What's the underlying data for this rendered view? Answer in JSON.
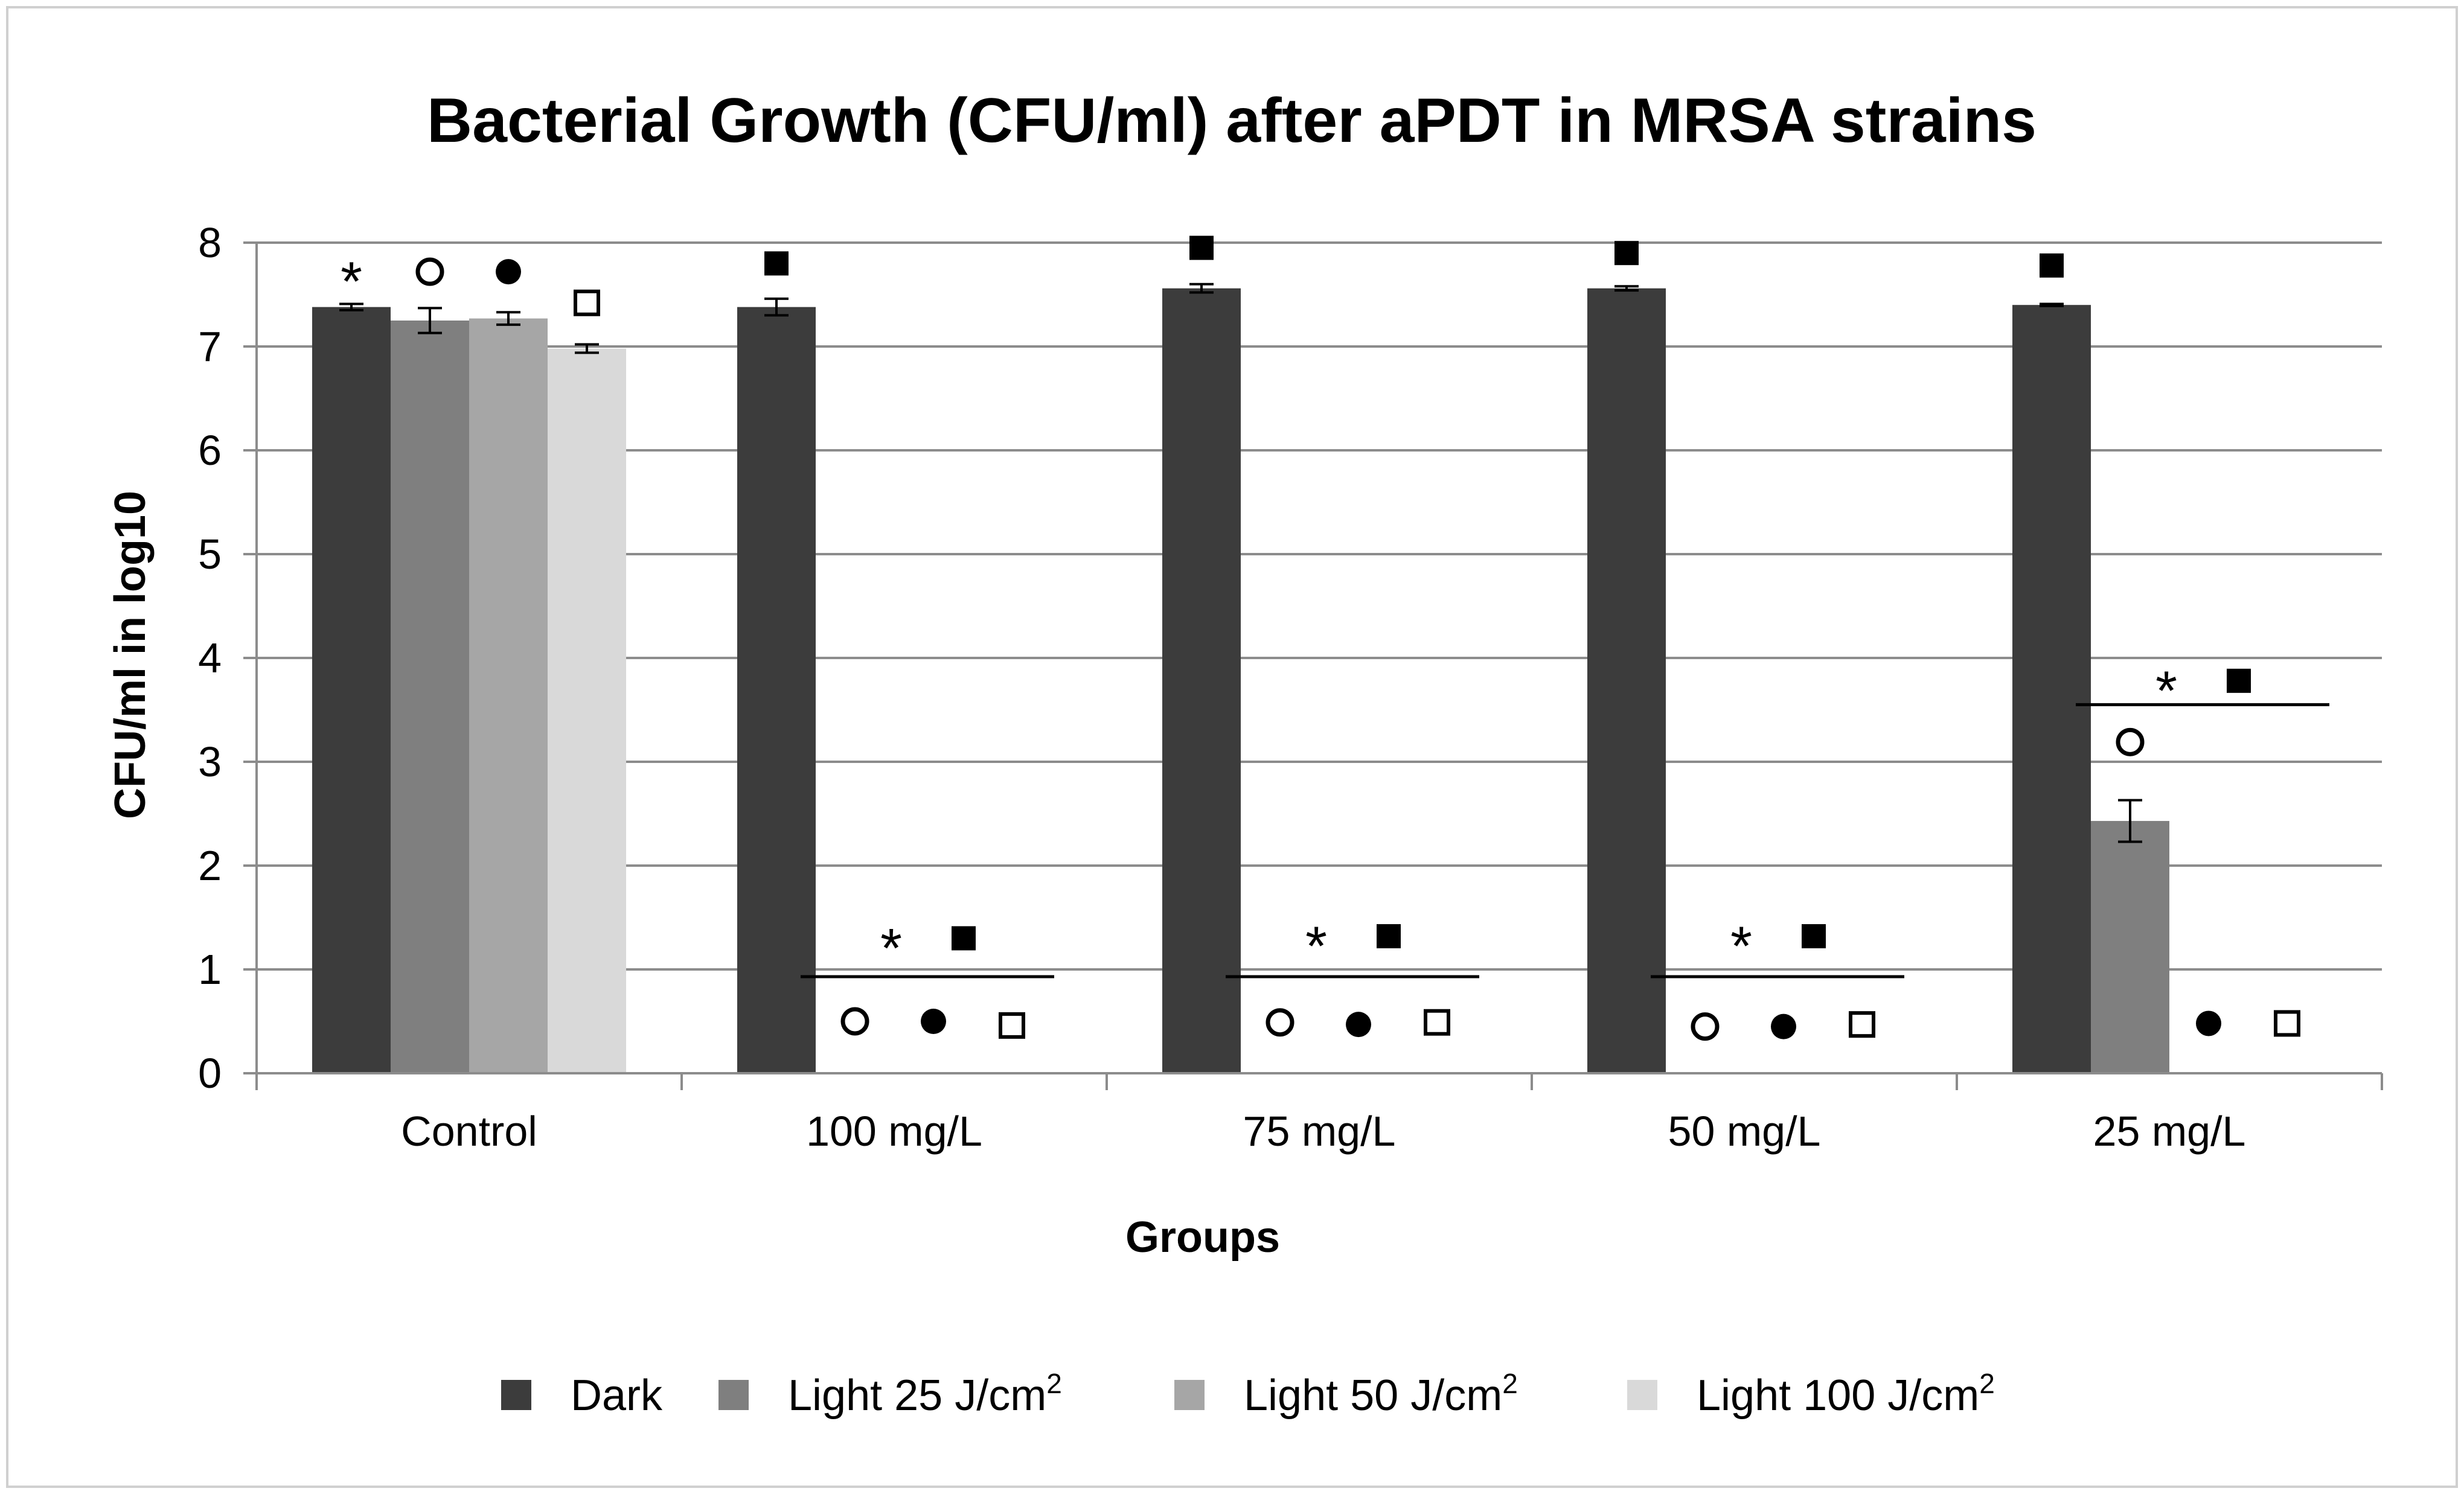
{
  "chart_data": {
    "type": "bar",
    "title": "Bacterial Growth (CFU/ml) after aPDT in MRSA strains",
    "xlabel": "Groups",
    "ylabel": "CFU/ml in log10",
    "ylim": [
      0,
      8
    ],
    "yticks": [
      "0",
      "1",
      "2",
      "3",
      "4",
      "5",
      "6",
      "7",
      "8"
    ],
    "grid": true,
    "legend_position": "bottom",
    "categories": [
      "Control",
      "100 mg/L",
      "75 mg/L",
      "50 mg/L",
      "25 mg/L"
    ],
    "series": [
      {
        "name": "Dark",
        "unit_base": "",
        "color": "#3c3c3c",
        "values": [
          7.38,
          7.38,
          7.56,
          7.56,
          7.4
        ],
        "errors": [
          0.03,
          0.08,
          0.04,
          0.02,
          0.01
        ]
      },
      {
        "name": "Light 25",
        "unit_base": " J/cm",
        "unit_sup": "2",
        "color": "#7f7f7f",
        "values": [
          7.25,
          0,
          0,
          0,
          2.43
        ],
        "errors": [
          0.12,
          0,
          0,
          0,
          0.2
        ]
      },
      {
        "name": "Light 50",
        "unit_base": " J/cm",
        "unit_sup": "2",
        "color": "#a6a6a6",
        "values": [
          7.27,
          0,
          0,
          0,
          0
        ],
        "errors": [
          0.06,
          0,
          0,
          0,
          0
        ]
      },
      {
        "name": "Light 100",
        "unit_base": " J/cm",
        "unit_sup": "2",
        "color": "#d9d9d9",
        "values": [
          6.98,
          0,
          0,
          0,
          0
        ],
        "errors": [
          0.04,
          0,
          0,
          0,
          0
        ]
      }
    ],
    "annotations": [
      {
        "category": 0,
        "series": 0,
        "y": 7.72,
        "symbol": "asterisk"
      },
      {
        "category": 0,
        "series": 1,
        "y": 7.72,
        "symbol": "open-circle"
      },
      {
        "category": 0,
        "series": 2,
        "y": 7.72,
        "symbol": "filled-circle"
      },
      {
        "category": 0,
        "series": 3,
        "y": 7.42,
        "symbol": "open-square"
      },
      {
        "category": 1,
        "series": 0,
        "y": 7.8,
        "symbol": "filled-square"
      },
      {
        "category": 2,
        "series": 0,
        "y": 7.95,
        "symbol": "filled-square"
      },
      {
        "category": 3,
        "series": 0,
        "y": 7.9,
        "symbol": "filled-square"
      },
      {
        "category": 4,
        "series": 0,
        "y": 7.78,
        "symbol": "filled-square"
      },
      {
        "category": 1,
        "series": 1,
        "y": 0.5,
        "symbol": "open-circle"
      },
      {
        "category": 1,
        "series": 2,
        "y": 0.5,
        "symbol": "filled-circle"
      },
      {
        "category": 1,
        "series": 3,
        "y": 0.46,
        "symbol": "open-square"
      },
      {
        "category": 2,
        "series": 1,
        "y": 0.49,
        "symbol": "open-circle"
      },
      {
        "category": 2,
        "series": 2,
        "y": 0.47,
        "symbol": "filled-circle"
      },
      {
        "category": 2,
        "series": 3,
        "y": 0.49,
        "symbol": "open-square"
      },
      {
        "category": 3,
        "series": 1,
        "y": 0.45,
        "symbol": "open-circle"
      },
      {
        "category": 3,
        "series": 2,
        "y": 0.45,
        "symbol": "filled-circle"
      },
      {
        "category": 3,
        "series": 3,
        "y": 0.47,
        "symbol": "open-square"
      },
      {
        "category": 4,
        "series": 1,
        "y": 3.19,
        "symbol": "open-circle"
      },
      {
        "category": 4,
        "series": 2,
        "y": 0.48,
        "symbol": "filled-circle"
      },
      {
        "category": 4,
        "series": 3,
        "y": 0.48,
        "symbol": "open-square"
      }
    ],
    "significance_lines": [
      {
        "category": 1,
        "y": 0.93,
        "labels": [
          "asterisk",
          "filled-square"
        ],
        "label_y": 1.3
      },
      {
        "category": 2,
        "y": 0.93,
        "labels": [
          "asterisk",
          "filled-square"
        ],
        "label_y": 1.32
      },
      {
        "category": 3,
        "y": 0.93,
        "labels": [
          "asterisk",
          "filled-square"
        ],
        "label_y": 1.32
      },
      {
        "category": 4,
        "y": 3.55,
        "labels": [
          "asterisk",
          "filled-square"
        ],
        "label_y": 3.78
      }
    ]
  }
}
